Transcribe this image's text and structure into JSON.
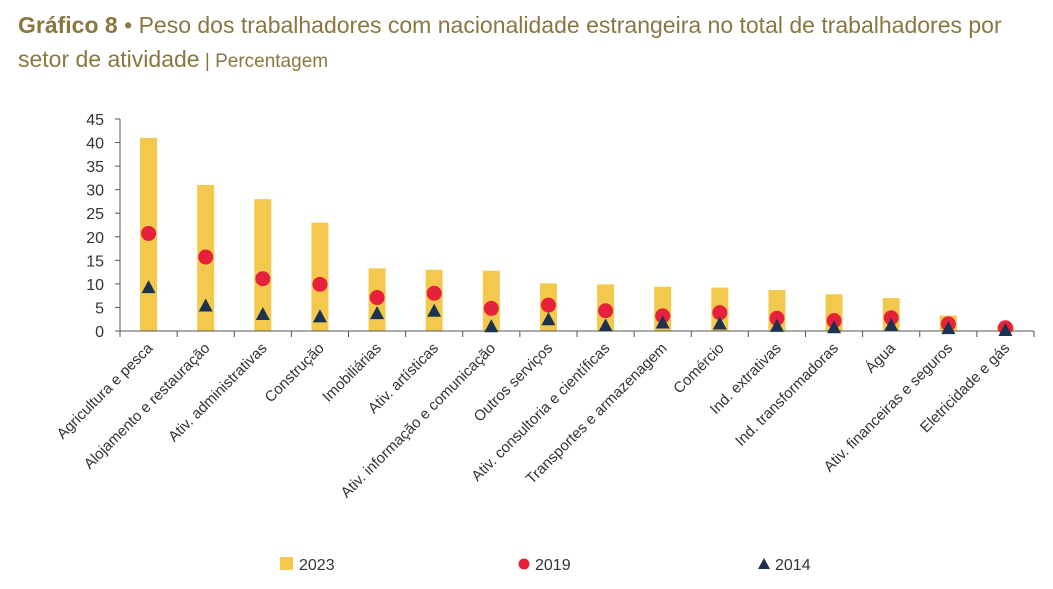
{
  "header": {
    "title_label": "Gráfico 8",
    "bullet": " • ",
    "title_text": "Peso dos trabalhadores com nacionalidade estrangeira no total de trabalhadores por setor de atividade",
    "separator": " | ",
    "unit": "Percentagem"
  },
  "colors": {
    "bar_2023": "#f2c94c",
    "dot_2019": "#e5213b",
    "tri_2014": "#1b3350",
    "axis": "#555555",
    "title": "#8a7740"
  },
  "chart_data": {
    "type": "bar",
    "title": "Peso dos trabalhadores com nacionalidade estrangeira no total de trabalhadores por setor de atividade",
    "ylabel": "",
    "xlabel": "",
    "ylim": [
      0,
      45
    ],
    "yticks": [
      0,
      5,
      10,
      15,
      20,
      25,
      30,
      35,
      40,
      45
    ],
    "grid": false,
    "legend_position": "bottom",
    "categories": [
      "Agricultura e pesca",
      "Alojamento e restauração",
      "Ativ. administrativas",
      "Construção",
      "Imobiliárias",
      "Ativ. artísticas",
      "Ativ. informação e comunicação",
      "Outros serviços",
      "Ativ. consultoria e científicas",
      "Transportes e armazenagem",
      "Comércio",
      "Ind. extrativas",
      "Ind. transformadoras",
      "Água",
      "Ativ. financeiras e seguros",
      "Eletricidade e gás"
    ],
    "series": [
      {
        "name": "2023",
        "marker": "bar",
        "values": [
          41,
          31,
          28,
          23,
          13.3,
          13,
          12.8,
          10.1,
          9.9,
          9.4,
          9.2,
          8.7,
          7.8,
          7,
          3.3,
          1.2
        ]
      },
      {
        "name": "2019",
        "marker": "circle",
        "values": [
          20.7,
          15.7,
          11.1,
          9.9,
          7.1,
          8,
          4.8,
          5.5,
          4.3,
          3.2,
          3.9,
          2.7,
          2.2,
          2.8,
          1.5,
          0.7
        ]
      },
      {
        "name": "2014",
        "marker": "triangle",
        "values": [
          9.3,
          5.4,
          3.6,
          3.1,
          3.8,
          4.3,
          1,
          2.5,
          1.2,
          1.8,
          1.6,
          1.1,
          0.8,
          1.3,
          0.6,
          0.2
        ]
      }
    ]
  }
}
